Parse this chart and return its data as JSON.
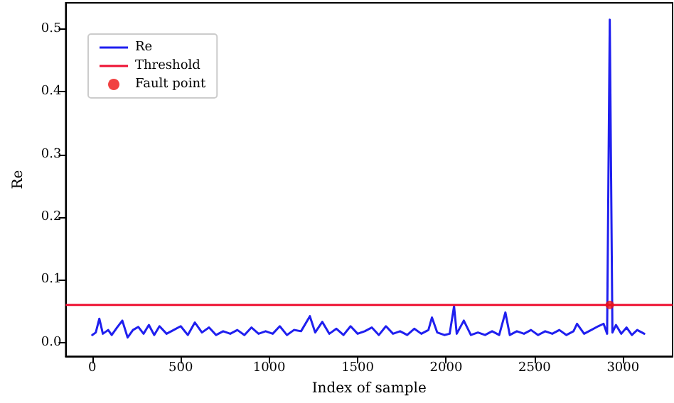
{
  "chart_data": {
    "type": "line",
    "xlabel": "Index of sample",
    "ylabel": "Re",
    "xlim": [
      -150,
      3280
    ],
    "ylim": [
      -0.022,
      0.542
    ],
    "xticks": [
      0,
      500,
      1000,
      1500,
      2000,
      2500,
      3000
    ],
    "yticks": [
      {
        "value": 0,
        "label": "0.0"
      },
      0.1,
      0.2,
      0.3,
      0.4,
      0.5
    ],
    "grid": false,
    "legend": "top left",
    "marker": "none",
    "line_style": "solid",
    "series": [
      {
        "name": "Re",
        "color": "#1f1fef",
        "x": [
          0,
          20,
          40,
          60,
          90,
          110,
          140,
          170,
          200,
          230,
          260,
          290,
          320,
          350,
          380,
          420,
          460,
          500,
          540,
          580,
          620,
          660,
          700,
          740,
          780,
          820,
          860,
          900,
          940,
          980,
          1020,
          1060,
          1100,
          1140,
          1180,
          1230,
          1260,
          1300,
          1340,
          1380,
          1420,
          1460,
          1500,
          1540,
          1580,
          1620,
          1660,
          1700,
          1740,
          1780,
          1820,
          1860,
          1900,
          1920,
          1950,
          1990,
          2020,
          2045,
          2060,
          2100,
          2140,
          2180,
          2220,
          2260,
          2300,
          2335,
          2360,
          2400,
          2440,
          2480,
          2520,
          2560,
          2600,
          2640,
          2680,
          2720,
          2740,
          2780,
          2820,
          2860,
          2890,
          2910,
          2925,
          2940,
          2960,
          2990,
          3020,
          3050,
          3080,
          3120
        ],
        "values": [
          0.012,
          0.016,
          0.038,
          0.014,
          0.02,
          0.012,
          0.024,
          0.035,
          0.008,
          0.02,
          0.025,
          0.014,
          0.028,
          0.012,
          0.026,
          0.014,
          0.02,
          0.026,
          0.012,
          0.032,
          0.016,
          0.024,
          0.012,
          0.018,
          0.014,
          0.02,
          0.012,
          0.024,
          0.014,
          0.018,
          0.014,
          0.026,
          0.012,
          0.02,
          0.018,
          0.042,
          0.016,
          0.033,
          0.014,
          0.022,
          0.012,
          0.026,
          0.014,
          0.018,
          0.024,
          0.012,
          0.026,
          0.014,
          0.018,
          0.012,
          0.022,
          0.014,
          0.02,
          0.04,
          0.016,
          0.012,
          0.014,
          0.058,
          0.014,
          0.035,
          0.012,
          0.016,
          0.012,
          0.018,
          0.012,
          0.048,
          0.012,
          0.018,
          0.014,
          0.02,
          0.012,
          0.018,
          0.014,
          0.02,
          0.012,
          0.018,
          0.03,
          0.014,
          0.02,
          0.026,
          0.03,
          0.014,
          0.515,
          0.016,
          0.028,
          0.014,
          0.024,
          0.012,
          0.02,
          0.014
        ]
      },
      {
        "name": "Fault point",
        "type": "scatter",
        "color": "#ee1111",
        "marker": "circle",
        "x": [
          2925
        ],
        "values": [
          0.06
        ]
      }
    ],
    "ref_lines": [
      {
        "axis": "y",
        "value": 0.06,
        "label": "Threshold",
        "color": "#ee1133",
        "line_style": "solid"
      }
    ]
  }
}
